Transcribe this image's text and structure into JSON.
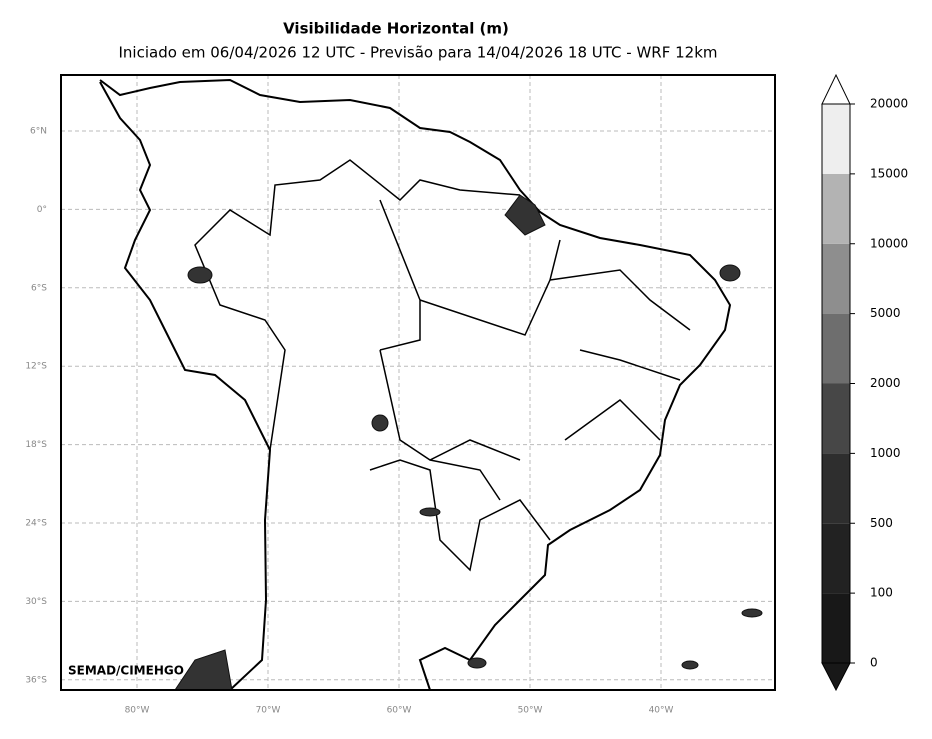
{
  "header": {
    "title": "Visibilidade Horizontal (m)",
    "subtitle": "Iniciado em 06/04/2026 12 UTC - Previsão para 14/04/2026 18 UTC - WRF 12km"
  },
  "map": {
    "lat_labels": [
      "6°N",
      "0°",
      "6°S",
      "12°S",
      "18°S",
      "24°S",
      "30°S",
      "36°S"
    ],
    "lon_labels": [
      "80°W",
      "70°W",
      "60°W",
      "50°W",
      "40°W"
    ],
    "credit": "SEMAD/CIMEHGO"
  },
  "colorbar": {
    "levels": [
      0,
      100,
      500,
      1000,
      2000,
      5000,
      10000,
      15000,
      20000
    ],
    "colors": [
      "#181818",
      "#222222",
      "#2e2e2e",
      "#474747",
      "#6e6e6e",
      "#8e8e8e",
      "#b3b3b3",
      "#eeeeee"
    ]
  }
}
